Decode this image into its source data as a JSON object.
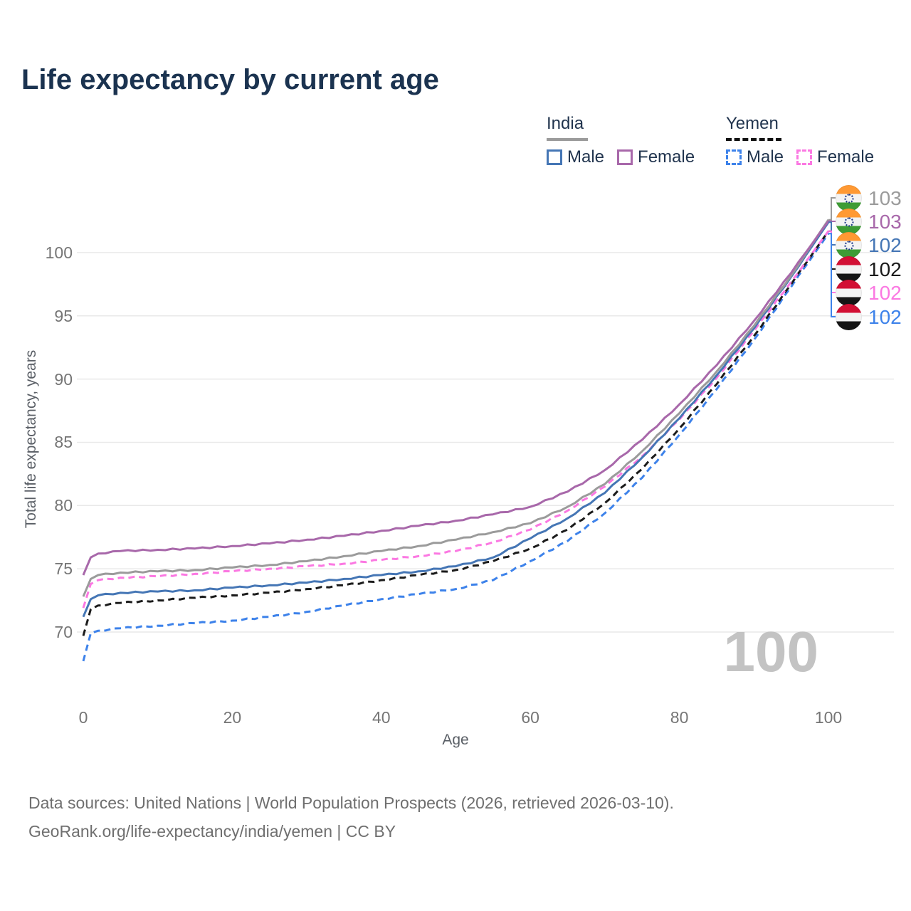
{
  "title": "Life expectancy by current age",
  "legend": {
    "groups": [
      {
        "label": "India",
        "line_style": "solid",
        "underline_color": "#9b9b9b",
        "items": [
          {
            "label": "Male",
            "color": "#4576b5",
            "dashed": false
          },
          {
            "label": "Female",
            "color": "#a868aa",
            "dashed": false
          }
        ]
      },
      {
        "label": "Yemen",
        "line_style": "dashed",
        "underline_color": "#111111",
        "items": [
          {
            "label": "Male",
            "color": "#3d82ea",
            "dashed": true
          },
          {
            "label": "Female",
            "color": "#fb78e2",
            "dashed": true
          }
        ]
      }
    ]
  },
  "axes": {
    "x": {
      "label": "Age",
      "ticks": [
        0,
        20,
        40,
        60,
        80,
        100
      ],
      "range": [
        0,
        100
      ],
      "grid": false
    },
    "y": {
      "label": "Total life expectancy, years",
      "ticks": [
        70,
        75,
        80,
        85,
        90,
        95,
        100
      ],
      "range": [
        66,
        104
      ],
      "grid": true
    }
  },
  "watermark": "100",
  "chart_data": {
    "type": "line",
    "x_label": "Age",
    "y_label": "Total life expectancy, years",
    "x": [
      0,
      1,
      2,
      5,
      10,
      15,
      20,
      25,
      30,
      35,
      40,
      45,
      50,
      55,
      60,
      65,
      70,
      75,
      80,
      85,
      90,
      95,
      100
    ],
    "series": [
      {
        "name": "India Total",
        "country": "india",
        "color": "#9b9b9b",
        "dashed": false,
        "end_label": "103",
        "callout_row": 0,
        "values": [
          72.8,
          74.2,
          74.5,
          74.7,
          74.8,
          74.9,
          75.1,
          75.3,
          75.6,
          76.0,
          76.4,
          76.8,
          77.3,
          77.9,
          78.6,
          79.9,
          81.7,
          84.3,
          87.3,
          90.6,
          94.2,
          98.2,
          102.6
        ]
      },
      {
        "name": "India Female",
        "country": "india",
        "color": "#a868aa",
        "dashed": false,
        "end_label": "103",
        "callout_row": 1,
        "values": [
          74.5,
          75.9,
          76.2,
          76.4,
          76.5,
          76.6,
          76.8,
          77.0,
          77.3,
          77.6,
          78.0,
          78.4,
          78.8,
          79.3,
          79.9,
          81.1,
          82.8,
          85.2,
          88.0,
          91.1,
          94.6,
          98.4,
          102.5
        ]
      },
      {
        "name": "India Male",
        "country": "india",
        "color": "#4576b5",
        "dashed": false,
        "end_label": "102",
        "callout_row": 2,
        "values": [
          71.2,
          72.6,
          72.9,
          73.1,
          73.2,
          73.3,
          73.5,
          73.7,
          73.9,
          74.2,
          74.5,
          74.8,
          75.2,
          75.9,
          77.4,
          79.0,
          81.0,
          83.8,
          86.9,
          90.3,
          94.0,
          98.1,
          102.4
        ]
      },
      {
        "name": "Yemen Total",
        "country": "yemen",
        "color": "#1b1b1b",
        "dashed": true,
        "end_label": "102",
        "callout_row": 3,
        "values": [
          69.7,
          71.8,
          72.1,
          72.3,
          72.5,
          72.7,
          72.9,
          73.1,
          73.4,
          73.7,
          74.1,
          74.5,
          74.9,
          75.6,
          76.6,
          78.1,
          80.2,
          82.9,
          86.1,
          89.6,
          93.4,
          97.5,
          101.7
        ]
      },
      {
        "name": "Yemen Female",
        "country": "yemen",
        "color": "#fb78e2",
        "dashed": true,
        "end_label": "102",
        "callout_row": 4,
        "values": [
          71.9,
          73.8,
          74.1,
          74.3,
          74.4,
          74.6,
          74.8,
          75.0,
          75.2,
          75.4,
          75.7,
          76.0,
          76.4,
          77.1,
          78.1,
          79.6,
          81.5,
          83.9,
          86.8,
          90.1,
          93.8,
          97.7,
          101.7
        ]
      },
      {
        "name": "Yemen Male",
        "country": "yemen",
        "color": "#3d82ea",
        "dashed": true,
        "end_label": "102",
        "callout_row": 5,
        "values": [
          67.7,
          69.9,
          70.1,
          70.3,
          70.5,
          70.7,
          70.9,
          71.2,
          71.6,
          72.1,
          72.6,
          73.0,
          73.4,
          74.1,
          75.6,
          77.2,
          79.4,
          82.2,
          85.6,
          89.2,
          93.1,
          97.3,
          101.5
        ]
      }
    ],
    "legend_position": "top-right",
    "grid": "horizontal"
  },
  "callouts": [
    {
      "country": "india",
      "value": "103",
      "color": "#9b9b9b"
    },
    {
      "country": "india",
      "value": "103",
      "color": "#a868aa"
    },
    {
      "country": "india",
      "value": "102",
      "color": "#4576b5"
    },
    {
      "country": "yemen",
      "value": "102",
      "color": "#1b1b1b"
    },
    {
      "country": "yemen",
      "value": "102",
      "color": "#fb78e2"
    },
    {
      "country": "yemen",
      "value": "102",
      "color": "#3d82ea"
    }
  ],
  "footer": {
    "line1": "Data sources: United Nations | World Population Prospects (2026, retrieved 2026-03-10).",
    "line2": "GeoRank.org/life-expectancy/india/yemen | CC BY"
  }
}
